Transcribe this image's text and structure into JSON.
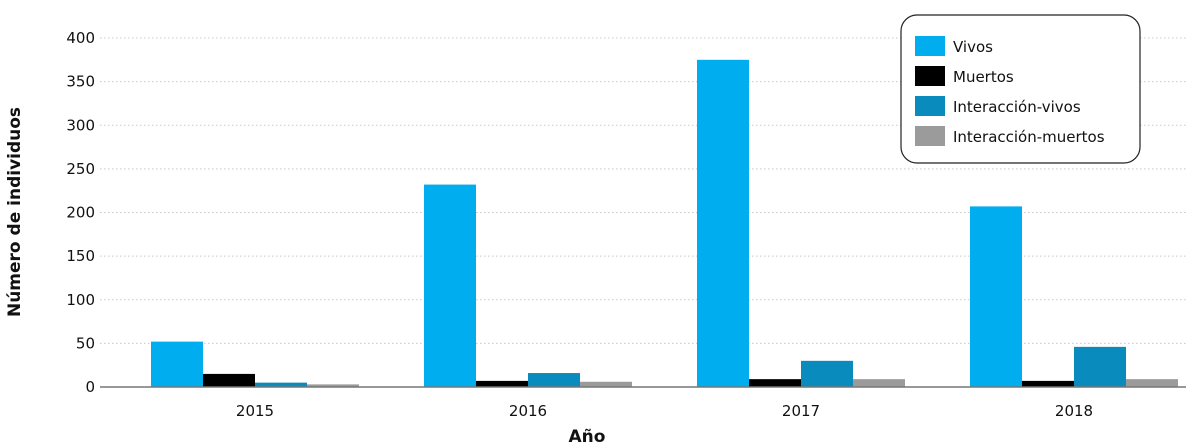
{
  "chart_data": {
    "type": "bar",
    "title": "",
    "xlabel": "Año",
    "ylabel": "Número de individuos",
    "categories": [
      "2015",
      "2016",
      "2017",
      "2018"
    ],
    "yticks": [
      "0",
      "50",
      "100",
      "150",
      "200",
      "250",
      "300",
      "350",
      "400"
    ],
    "ylim": [
      0,
      400
    ],
    "grid": true,
    "legend_position": "top-right",
    "series": [
      {
        "name": "Vivos",
        "color": "#00aeef",
        "values": [
          52,
          232,
          375,
          207
        ]
      },
      {
        "name": "Muertos",
        "color": "#000000",
        "values": [
          15,
          7,
          9,
          7
        ]
      },
      {
        "name": "Interacción-vivos",
        "color": "#0a8bbd",
        "values": [
          5,
          16,
          30,
          46
        ]
      },
      {
        "name": "Interacción-muertos",
        "color": "#9b9b9b",
        "values": [
          3,
          6,
          9,
          9
        ]
      }
    ]
  }
}
